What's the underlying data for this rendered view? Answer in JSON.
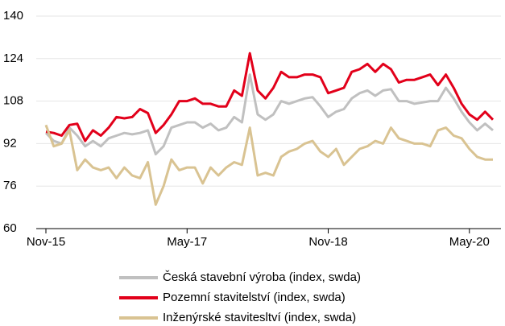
{
  "chart_data": {
    "type": "line",
    "categories": [
      "Nov-15",
      null,
      null,
      null,
      null,
      null,
      null,
      null,
      null,
      null,
      null,
      null,
      null,
      null,
      null,
      null,
      null,
      null,
      "May-17",
      null,
      null,
      null,
      null,
      null,
      null,
      null,
      null,
      null,
      null,
      null,
      null,
      null,
      null,
      null,
      null,
      null,
      "Nov-18",
      null,
      null,
      null,
      null,
      null,
      null,
      null,
      null,
      null,
      null,
      null,
      null,
      null,
      null,
      null,
      null,
      null,
      "May-20",
      null,
      null,
      null
    ],
    "series": [
      {
        "name": "Česká stavební výroba (index, swda)",
        "color": "#c0c0c0",
        "values": [
          96,
          93,
          92,
          98,
          95,
          91,
          93,
          91,
          94,
          95,
          96,
          95.5,
          96,
          97,
          88,
          91,
          98,
          99,
          100,
          100,
          98,
          99.5,
          97,
          98,
          102,
          100,
          118,
          103,
          101,
          103,
          108,
          107,
          108,
          109,
          109.5,
          106,
          102,
          104,
          105,
          109,
          111,
          112,
          110,
          112,
          112.5,
          108,
          108,
          107,
          107.5,
          108,
          108,
          113,
          109,
          104,
          100,
          97,
          99.5,
          97
        ]
      },
      {
        "name": "Pozemní stavitelství (index, swda)",
        "color": "#e2001a",
        "values": [
          96.5,
          96,
          95,
          99,
          99.5,
          93,
          97,
          95,
          98,
          102,
          101.5,
          102,
          105,
          103.5,
          96,
          99,
          103,
          108,
          108,
          109,
          107,
          107,
          106,
          106,
          112,
          110,
          126,
          112,
          109,
          113,
          119,
          117,
          117,
          118,
          118,
          117,
          111,
          112,
          113,
          119,
          120,
          122,
          119,
          122,
          120,
          115,
          116,
          116,
          117,
          118,
          114,
          118,
          113,
          107,
          103,
          101,
          104,
          101
        ]
      },
      {
        "name": "Inženýrské stavitesltví (index, swda)",
        "color": "#d9c392",
        "values": [
          99,
          91,
          92,
          97,
          82,
          86,
          83,
          82,
          83,
          79,
          83,
          80,
          79,
          85,
          69,
          76,
          86,
          82,
          83,
          83,
          77,
          83,
          80,
          83,
          85,
          84,
          98,
          80,
          81,
          80,
          87,
          89,
          90,
          92,
          93,
          89,
          87,
          90,
          84,
          87,
          90,
          91,
          93,
          92,
          98,
          94,
          93,
          92,
          92,
          91,
          97,
          98,
          95,
          94,
          90,
          87,
          86,
          86
        ]
      }
    ],
    "ylim": [
      60,
      140
    ],
    "yticks": [
      60,
      76,
      92,
      108,
      124,
      140
    ],
    "grid": true
  }
}
